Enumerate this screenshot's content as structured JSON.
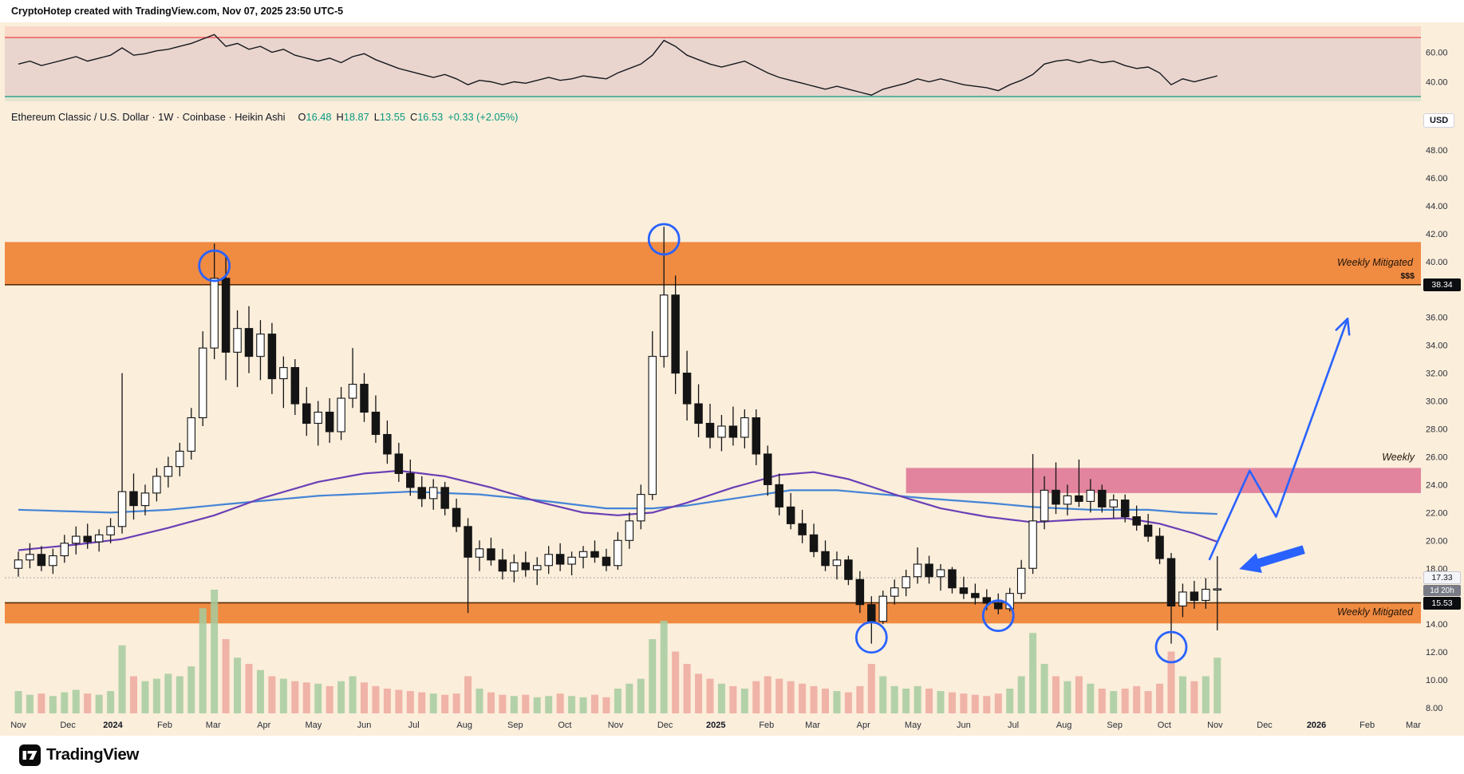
{
  "attribution": {
    "text": "CryptoHotep created with TradingView.com, Nov 07, 2025 23:50 UTC-5"
  },
  "symbol": {
    "title": "Ethereum Classic / U.S. Dollar · 1W · Coinbase · Heikin Ashi",
    "ohlc": [
      {
        "k": "O",
        "v": "16.48"
      },
      {
        "k": "H",
        "v": "18.87"
      },
      {
        "k": "L",
        "v": "13.55"
      },
      {
        "k": "C",
        "v": "16.53"
      }
    ],
    "change": "+0.33 (+2.05%)"
  },
  "axis": {
    "currency_label": "USD"
  },
  "labels": {
    "upper_zone": "Weekly Mitigated",
    "lower_zone": "Weekly Mitigated",
    "pink_zone": "Weekly",
    "money": "$$$"
  },
  "badges": {
    "upper_zone_price": "38.34",
    "countdown_price": "17.33",
    "countdown_time": "1d 20h",
    "lower_zone_price": "15.53"
  },
  "footer": {
    "logo_text": "TradingView"
  },
  "colors": {
    "accent_blue": "#2962ff",
    "ma_fast_purple": "#6a3fb5",
    "ma_slow_blue": "#4484d6",
    "zone_orange": "#ee7d2c",
    "zone_border": "#5a2d08",
    "zone_pink": "#d9608a",
    "candle_up": "#ffffff",
    "candle_down": "#141414",
    "candle_outline": "#141414",
    "rsi_line": "#16181d",
    "rsi_upper_line": "#ef4148",
    "rsi_lower_line": "#0e9a7f",
    "vol_up": "#a6cb9f",
    "vol_down": "#eda89d",
    "tick_text": "#2a2e39",
    "dotted_line": "#8a8d98"
  },
  "chart_data": {
    "type": "candlestick",
    "title": "Ethereum Classic / U.S. Dollar · 1W · Coinbase · Heikin Ashi",
    "subpanels": [
      "RSI",
      "price",
      "volume"
    ],
    "price_axis": {
      "min": 8,
      "max": 48,
      "tick_step": 2,
      "ticks": [
        48,
        46,
        44,
        42,
        40,
        36,
        34,
        32,
        30,
        28,
        26,
        24,
        22,
        20,
        18,
        14,
        12,
        10,
        8
      ]
    },
    "rsi": {
      "overbought": 70,
      "oversold": 30,
      "ticks": [
        60,
        40
      ],
      "values": [
        52,
        54,
        51,
        53,
        55,
        57,
        54,
        56,
        58,
        63,
        58,
        59,
        61,
        62,
        64,
        66,
        69,
        72,
        64,
        66,
        62,
        64,
        60,
        62,
        58,
        56,
        54,
        56,
        53,
        57,
        59,
        55,
        52,
        49,
        47,
        45,
        43,
        45,
        42,
        38,
        41,
        40,
        38,
        40,
        39,
        41,
        43,
        41,
        42,
        44,
        43,
        42,
        46,
        49,
        52,
        58,
        68,
        64,
        58,
        55,
        52,
        50,
        52,
        54,
        50,
        46,
        43,
        41,
        39,
        37,
        35,
        37,
        35,
        33,
        31,
        35,
        37,
        39,
        42,
        40,
        42,
        40,
        38,
        37,
        36,
        34,
        38,
        41,
        45,
        52,
        54,
        55,
        53,
        55,
        53,
        54,
        51,
        49,
        50,
        46,
        38,
        42,
        40,
        42,
        44
      ]
    },
    "time_ticks": [
      [
        "Nov",
        0
      ],
      [
        "Dec",
        4.3
      ],
      [
        "2024",
        8.2
      ],
      [
        "Feb",
        12.7
      ],
      [
        "Mar",
        16.9
      ],
      [
        "Apr",
        21.3
      ],
      [
        "May",
        25.6
      ],
      [
        "Jun",
        30.0
      ],
      [
        "Jul",
        34.3
      ],
      [
        "Aug",
        38.7
      ],
      [
        "Sep",
        43.1
      ],
      [
        "Oct",
        47.4
      ],
      [
        "Nov",
        51.8
      ],
      [
        "Dec",
        56.1
      ],
      [
        "2025",
        60.5
      ],
      [
        "Feb",
        64.9
      ],
      [
        "Mar",
        68.9
      ],
      [
        "Apr",
        73.3
      ],
      [
        "May",
        77.6
      ],
      [
        "Jun",
        82.0
      ],
      [
        "Jul",
        86.3
      ],
      [
        "Aug",
        90.7
      ],
      [
        "Sep",
        95.1
      ],
      [
        "Oct",
        99.4
      ],
      [
        "Nov",
        103.8
      ],
      [
        "Dec",
        108.1
      ],
      [
        "2026",
        112.6
      ],
      [
        "Feb",
        117.0
      ],
      [
        "Mar",
        121.0
      ]
    ],
    "candles": [
      [
        18.0,
        19.2,
        17.4,
        18.6,
        0.18
      ],
      [
        18.6,
        19.8,
        18.0,
        19.0,
        0.15
      ],
      [
        19.0,
        19.6,
        17.8,
        18.2,
        0.16
      ],
      [
        18.2,
        19.4,
        17.6,
        18.9,
        0.14
      ],
      [
        18.9,
        20.4,
        18.4,
        19.8,
        0.17
      ],
      [
        19.8,
        21.0,
        19.0,
        20.3,
        0.19
      ],
      [
        20.3,
        21.2,
        19.4,
        19.9,
        0.16
      ],
      [
        19.9,
        20.8,
        19.2,
        20.4,
        0.15
      ],
      [
        20.4,
        21.6,
        19.8,
        21.0,
        0.18
      ],
      [
        21.0,
        32.0,
        20.5,
        23.5,
        0.55
      ],
      [
        23.5,
        24.8,
        21.5,
        22.5,
        0.3
      ],
      [
        22.5,
        24.0,
        21.8,
        23.4,
        0.26
      ],
      [
        23.4,
        25.2,
        22.8,
        24.6,
        0.28
      ],
      [
        24.6,
        26.0,
        23.8,
        25.3,
        0.32
      ],
      [
        25.3,
        27.0,
        24.6,
        26.4,
        0.3
      ],
      [
        26.4,
        29.5,
        25.8,
        28.8,
        0.38
      ],
      [
        28.8,
        35.0,
        28.2,
        33.8,
        0.85
      ],
      [
        33.8,
        41.3,
        33.0,
        38.8,
        1.0
      ],
      [
        38.8,
        40.5,
        31.5,
        33.5,
        0.6
      ],
      [
        33.5,
        36.5,
        31.0,
        35.2,
        0.45
      ],
      [
        35.2,
        36.8,
        32.0,
        33.2,
        0.4
      ],
      [
        33.2,
        35.8,
        31.5,
        34.8,
        0.35
      ],
      [
        34.8,
        35.6,
        30.5,
        31.6,
        0.3
      ],
      [
        31.6,
        33.2,
        29.5,
        32.4,
        0.28
      ],
      [
        32.4,
        33.0,
        29.0,
        29.8,
        0.26
      ],
      [
        29.8,
        31.0,
        27.5,
        28.4,
        0.25
      ],
      [
        28.4,
        30.0,
        26.8,
        29.2,
        0.24
      ],
      [
        29.2,
        30.2,
        27.0,
        27.8,
        0.22
      ],
      [
        27.8,
        31.0,
        27.2,
        30.2,
        0.26
      ],
      [
        30.2,
        33.8,
        29.5,
        31.2,
        0.3
      ],
      [
        31.2,
        32.0,
        28.5,
        29.2,
        0.25
      ],
      [
        29.2,
        30.4,
        27.0,
        27.6,
        0.22
      ],
      [
        27.6,
        28.6,
        25.5,
        26.2,
        0.2
      ],
      [
        26.2,
        27.0,
        24.2,
        24.8,
        0.19
      ],
      [
        24.8,
        25.8,
        23.2,
        23.8,
        0.18
      ],
      [
        23.8,
        24.6,
        22.4,
        23.0,
        0.17
      ],
      [
        23.0,
        24.4,
        22.2,
        23.8,
        0.16
      ],
      [
        23.8,
        24.2,
        21.8,
        22.3,
        0.15
      ],
      [
        22.3,
        23.0,
        20.6,
        21.0,
        0.16
      ],
      [
        21.0,
        21.6,
        14.8,
        18.8,
        0.3
      ],
      [
        18.8,
        20.0,
        17.8,
        19.4,
        0.2
      ],
      [
        19.4,
        20.2,
        18.2,
        18.6,
        0.17
      ],
      [
        18.6,
        19.4,
        17.2,
        17.8,
        0.15
      ],
      [
        17.8,
        19.0,
        17.0,
        18.4,
        0.14
      ],
      [
        18.4,
        19.2,
        17.4,
        17.9,
        0.15
      ],
      [
        17.9,
        18.8,
        16.8,
        18.2,
        0.13
      ],
      [
        18.2,
        19.6,
        17.6,
        19.0,
        0.14
      ],
      [
        19.0,
        19.8,
        17.8,
        18.3,
        0.16
      ],
      [
        18.3,
        19.2,
        17.5,
        18.8,
        0.14
      ],
      [
        18.8,
        19.6,
        18.0,
        19.2,
        0.13
      ],
      [
        19.2,
        20.0,
        18.4,
        18.8,
        0.15
      ],
      [
        18.8,
        19.4,
        17.8,
        18.2,
        0.13
      ],
      [
        18.2,
        20.6,
        17.9,
        20.0,
        0.2
      ],
      [
        20.0,
        22.0,
        19.4,
        21.4,
        0.24
      ],
      [
        21.4,
        24.0,
        20.8,
        23.3,
        0.28
      ],
      [
        23.3,
        35.0,
        22.9,
        33.2,
        0.6
      ],
      [
        33.2,
        42.5,
        32.4,
        37.6,
        0.75
      ],
      [
        37.6,
        39.0,
        30.5,
        32.0,
        0.5
      ],
      [
        32.0,
        33.6,
        28.6,
        29.8,
        0.4
      ],
      [
        29.8,
        31.2,
        27.4,
        28.4,
        0.32
      ],
      [
        28.4,
        29.8,
        26.6,
        27.4,
        0.28
      ],
      [
        27.4,
        29.0,
        26.4,
        28.2,
        0.24
      ],
      [
        28.2,
        29.6,
        26.8,
        27.4,
        0.22
      ],
      [
        27.4,
        29.4,
        26.6,
        28.8,
        0.2
      ],
      [
        28.8,
        29.4,
        25.4,
        26.2,
        0.26
      ],
      [
        26.2,
        26.8,
        23.2,
        24.0,
        0.3
      ],
      [
        24.0,
        24.8,
        21.8,
        22.4,
        0.28
      ],
      [
        22.4,
        23.4,
        20.8,
        21.2,
        0.26
      ],
      [
        21.2,
        22.2,
        19.8,
        20.4,
        0.24
      ],
      [
        20.4,
        21.2,
        18.8,
        19.2,
        0.22
      ],
      [
        19.2,
        20.0,
        17.8,
        18.2,
        0.2
      ],
      [
        18.2,
        19.2,
        17.2,
        18.6,
        0.18
      ],
      [
        18.6,
        18.9,
        16.8,
        17.2,
        0.17
      ],
      [
        17.2,
        17.8,
        14.8,
        15.4,
        0.22
      ],
      [
        15.4,
        16.0,
        12.6,
        14.2,
        0.4
      ],
      [
        14.2,
        16.4,
        14.0,
        16.0,
        0.3
      ],
      [
        16.0,
        17.2,
        15.4,
        16.6,
        0.22
      ],
      [
        16.6,
        17.9,
        16.0,
        17.4,
        0.2
      ],
      [
        17.4,
        19.5,
        16.9,
        18.3,
        0.22
      ],
      [
        18.3,
        18.9,
        16.9,
        17.4,
        0.2
      ],
      [
        17.4,
        18.3,
        16.4,
        17.9,
        0.18
      ],
      [
        17.9,
        18.1,
        16.2,
        16.6,
        0.17
      ],
      [
        16.6,
        17.4,
        15.8,
        16.2,
        0.16
      ],
      [
        16.2,
        16.9,
        15.4,
        15.9,
        0.15
      ],
      [
        15.9,
        16.5,
        15.0,
        15.5,
        0.14
      ],
      [
        15.5,
        16.2,
        14.7,
        15.1,
        0.16
      ],
      [
        15.1,
        16.6,
        14.9,
        16.2,
        0.2
      ],
      [
        16.2,
        18.6,
        15.8,
        18.0,
        0.3
      ],
      [
        18.0,
        26.2,
        17.6,
        21.4,
        0.65
      ],
      [
        21.4,
        24.6,
        20.8,
        23.6,
        0.4
      ],
      [
        23.6,
        25.6,
        21.9,
        22.6,
        0.3
      ],
      [
        22.6,
        24.0,
        21.8,
        23.2,
        0.26
      ],
      [
        23.2,
        25.8,
        22.4,
        22.8,
        0.3
      ],
      [
        22.8,
        24.4,
        22.0,
        23.6,
        0.24
      ],
      [
        23.6,
        24.0,
        22.0,
        22.4,
        0.2
      ],
      [
        22.4,
        23.3,
        21.6,
        22.9,
        0.18
      ],
      [
        22.9,
        23.3,
        21.3,
        21.7,
        0.2
      ],
      [
        21.7,
        22.5,
        20.7,
        21.1,
        0.22
      ],
      [
        21.1,
        21.9,
        19.9,
        20.3,
        0.18
      ],
      [
        20.3,
        20.9,
        18.3,
        18.7,
        0.24
      ],
      [
        18.7,
        19.1,
        12.6,
        15.3,
        0.5
      ],
      [
        15.3,
        16.9,
        14.5,
        16.3,
        0.3
      ],
      [
        16.3,
        17.1,
        15.1,
        15.7,
        0.26
      ],
      [
        15.7,
        17.3,
        15.1,
        16.5,
        0.3
      ],
      [
        16.48,
        18.87,
        13.55,
        16.53,
        0.45
      ]
    ],
    "ma_blue_points": [
      [
        0,
        22.2
      ],
      [
        8,
        22.0
      ],
      [
        13,
        22.2
      ],
      [
        18,
        22.6
      ],
      [
        26,
        23.2
      ],
      [
        34,
        23.5
      ],
      [
        40,
        23.3
      ],
      [
        46,
        22.8
      ],
      [
        51,
        22.3
      ],
      [
        55,
        22.3
      ],
      [
        58,
        22.5
      ],
      [
        62,
        23.0
      ],
      [
        67,
        23.6
      ],
      [
        71,
        23.6
      ],
      [
        75,
        23.3
      ],
      [
        79,
        23.0
      ],
      [
        84,
        22.7
      ],
      [
        88,
        22.4
      ],
      [
        93,
        22.2
      ],
      [
        98,
        22.2
      ],
      [
        101,
        22.0
      ],
      [
        104,
        21.9
      ]
    ],
    "ma_purple_points": [
      [
        0,
        19.3
      ],
      [
        5,
        19.7
      ],
      [
        9,
        20.1
      ],
      [
        13,
        20.9
      ],
      [
        17,
        21.8
      ],
      [
        21,
        23.0
      ],
      [
        26,
        24.2
      ],
      [
        30,
        24.8
      ],
      [
        33,
        25.0
      ],
      [
        37,
        24.6
      ],
      [
        41,
        23.8
      ],
      [
        45,
        22.8
      ],
      [
        49,
        22.0
      ],
      [
        52,
        21.8
      ],
      [
        55,
        22.0
      ],
      [
        58,
        22.7
      ],
      [
        62,
        23.8
      ],
      [
        66,
        24.7
      ],
      [
        69,
        24.9
      ],
      [
        72,
        24.4
      ],
      [
        76,
        23.3
      ],
      [
        80,
        22.3
      ],
      [
        84,
        21.7
      ],
      [
        88,
        21.3
      ],
      [
        92,
        21.5
      ],
      [
        96,
        21.6
      ],
      [
        99,
        21.2
      ],
      [
        102,
        20.5
      ],
      [
        104,
        19.9
      ]
    ],
    "zones": [
      {
        "name": "supply",
        "label": "Weekly Mitigated",
        "price_top": 41.4,
        "price_bottom": 38.34,
        "opacity": 0.88,
        "border_price": 38.34
      },
      {
        "name": "demand",
        "label": "Weekly Mitigated",
        "price_top": 15.53,
        "price_bottom": 14.05,
        "opacity": 0.88,
        "border_price": 15.53
      },
      {
        "name": "weekly",
        "label": "Weekly",
        "price_top": 25.2,
        "price_bottom": 23.4,
        "opacity": 0.75,
        "week_start": 77,
        "pink": true
      }
    ],
    "dotted_price_line": 17.33,
    "circles": [
      [
        17,
        39.7
      ],
      [
        56,
        41.6
      ],
      [
        74,
        13.05
      ],
      [
        85,
        14.6
      ],
      [
        100,
        12.35
      ]
    ],
    "projection_path": [
      [
        103.3,
        18.6
      ],
      [
        106.8,
        25.0
      ],
      [
        109.1,
        21.7
      ],
      [
        115.3,
        35.9
      ]
    ],
    "flat_arrow": {
      "tip": [
        105.9,
        17.95
      ],
      "tail": [
        111.5,
        19.35
      ]
    }
  }
}
